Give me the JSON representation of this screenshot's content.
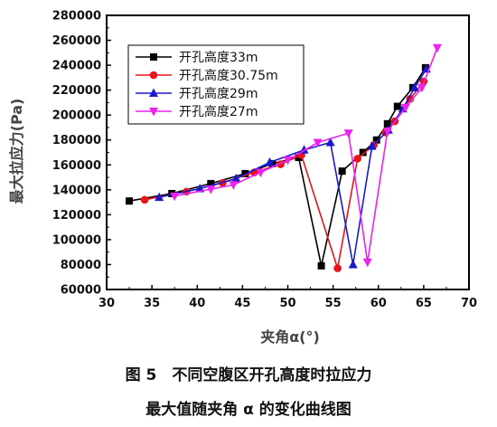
{
  "chart_data": {
    "type": "line",
    "xlabel": "夹角α(°)",
    "ylabel": "最大拉应力(Pa)",
    "xlim": [
      30,
      70
    ],
    "ylim": [
      60000,
      280000
    ],
    "xticks": [
      30,
      35,
      40,
      45,
      50,
      55,
      60,
      65,
      70
    ],
    "yticks": [
      60000,
      80000,
      100000,
      120000,
      140000,
      160000,
      180000,
      200000,
      220000,
      240000,
      260000,
      280000
    ],
    "grid": false,
    "legend_position": "top-left",
    "series": [
      {
        "name": "开孔高度33m",
        "color": "#000000",
        "marker": "square",
        "x": [
          32.5,
          37.2,
          41.5,
          45.3,
          48.3,
          51.2,
          53.7,
          56.0,
          58.3,
          59.8,
          61.0,
          62.1,
          63.8,
          65.2
        ],
        "y": [
          131000,
          137000,
          145000,
          153000,
          161000,
          166000,
          79000,
          155000,
          170000,
          180000,
          193000,
          207000,
          222000,
          238000
        ]
      },
      {
        "name": "开孔高度30.75m",
        "color": "#e8141c",
        "marker": "circle",
        "x": [
          34.2,
          38.8,
          42.8,
          46.3,
          49.2,
          51.5,
          55.5,
          57.7,
          59.5,
          60.8,
          61.8,
          63.5,
          65.0
        ],
        "y": [
          132000,
          138500,
          145500,
          154000,
          160500,
          168000,
          77000,
          165000,
          176000,
          186000,
          195000,
          213000,
          227000
        ]
      },
      {
        "name": "开孔高度29m",
        "color": "#1a1acd",
        "marker": "triangle-up",
        "x": [
          35.8,
          40.3,
          44.3,
          48.0,
          51.8,
          54.7,
          57.2,
          59.3,
          61.1,
          62.7,
          64.0,
          65.3
        ],
        "y": [
          134000,
          141000,
          149000,
          162000,
          172000,
          178000,
          80000,
          175000,
          188000,
          205000,
          222000,
          237000
        ]
      },
      {
        "name": "开孔高度27m",
        "color": "#ee22ee",
        "marker": "triangle-down",
        "x": [
          37.5,
          41.5,
          44.0,
          47.0,
          50.0,
          53.3,
          56.7,
          58.8,
          61.0,
          63.0,
          64.8,
          66.5
        ],
        "y": [
          135000,
          140500,
          144000,
          154000,
          164000,
          178000,
          185500,
          82000,
          187000,
          206000,
          222000,
          254000
        ]
      }
    ]
  },
  "caption": {
    "line1": "图 5　不同空腹区开孔高度时拉应力",
    "line2": "最大值随夹角 α 的变化曲线图"
  }
}
